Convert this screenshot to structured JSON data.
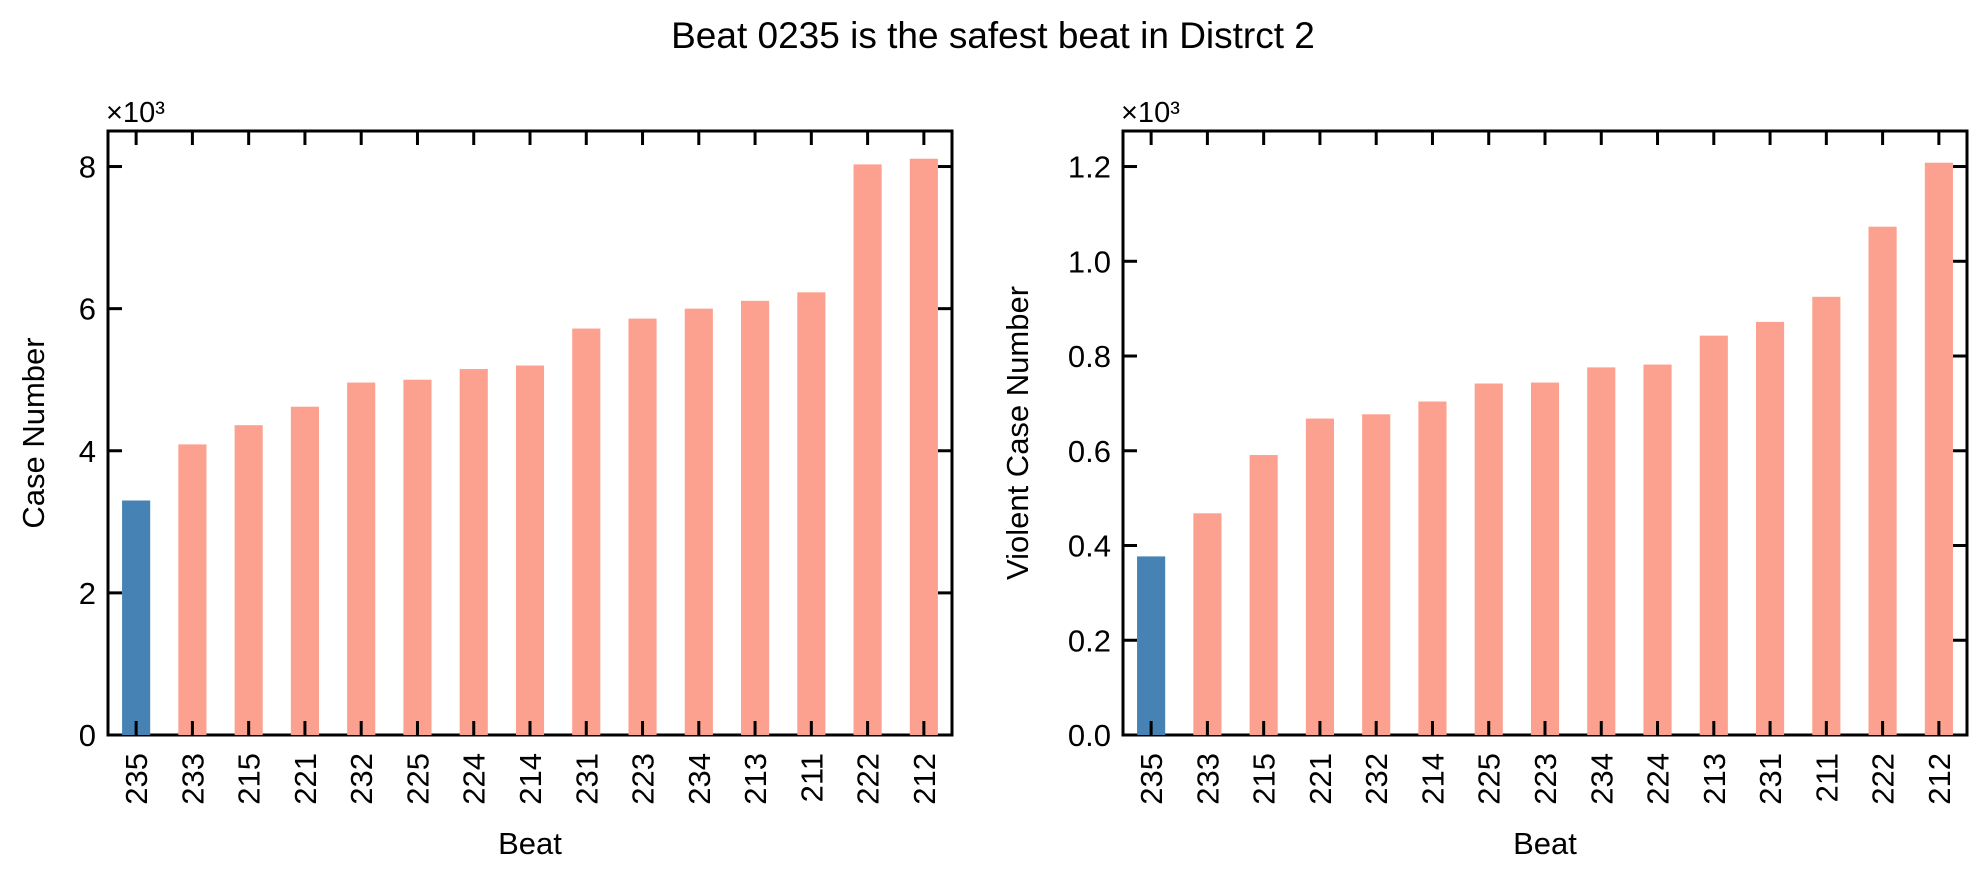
{
  "figure": {
    "title": "Beat 0235 is the safest beat in Distrct 2"
  },
  "colors": {
    "highlight": "#4682b4",
    "default": "#fca190"
  },
  "chart_data": [
    {
      "type": "bar",
      "categories": [
        "235",
        "233",
        "215",
        "221",
        "232",
        "225",
        "224",
        "214",
        "231",
        "223",
        "234",
        "213",
        "211",
        "222",
        "212"
      ],
      "values": [
        3300,
        4090,
        4360,
        4620,
        4960,
        5000,
        5150,
        5200,
        5720,
        5860,
        6000,
        6110,
        6230,
        8030,
        8110
      ],
      "highlight_index": 0,
      "xlabel": "Beat",
      "ylabel": "Case Number",
      "ylim": [
        0,
        8500
      ],
      "yticks": [
        0,
        2000,
        4000,
        6000,
        8000
      ],
      "ytick_labels": [
        "0",
        "2",
        "4",
        "6",
        "8"
      ],
      "offset_text": "×10³",
      "grid": false,
      "legend": "none"
    },
    {
      "type": "bar",
      "categories": [
        "235",
        "233",
        "215",
        "221",
        "232",
        "214",
        "225",
        "223",
        "234",
        "224",
        "213",
        "231",
        "211",
        "222",
        "212"
      ],
      "values": [
        377,
        468,
        591,
        668,
        677,
        704,
        742,
        744,
        776,
        782,
        843,
        872,
        925,
        1073,
        1208
      ],
      "highlight_index": 0,
      "xlabel": "Beat",
      "ylabel": "Violent Case Number",
      "ylim": [
        0,
        1275
      ],
      "yticks": [
        0,
        200,
        400,
        600,
        800,
        1000,
        1200
      ],
      "ytick_labels": [
        "0.0",
        "0.2",
        "0.4",
        "0.6",
        "0.8",
        "1.0",
        "1.2"
      ],
      "offset_text": "×10³",
      "grid": false,
      "legend": "none"
    }
  ]
}
